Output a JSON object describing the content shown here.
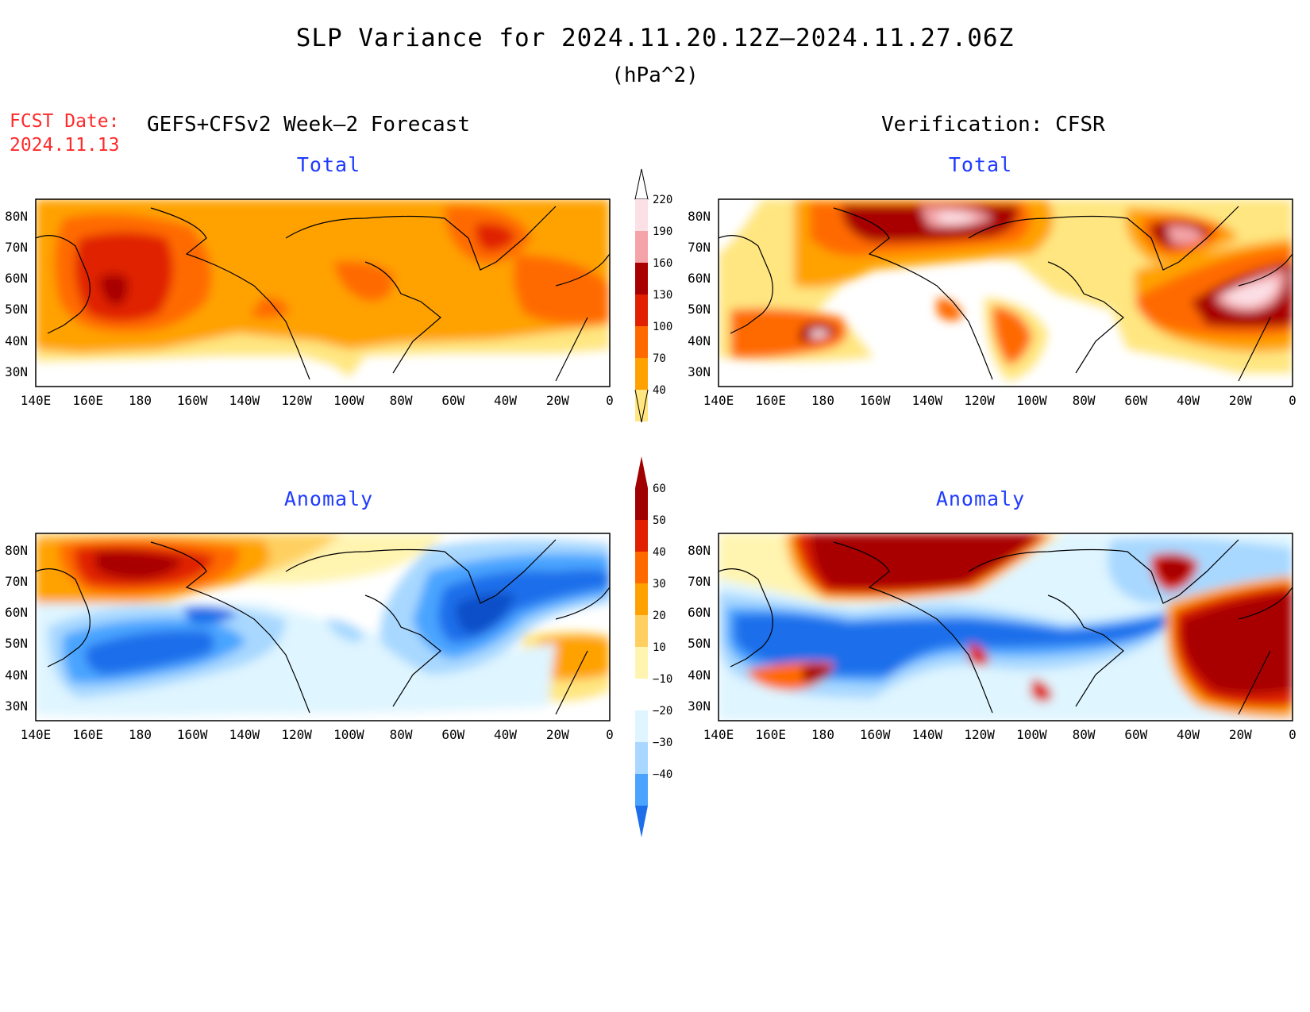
{
  "header": {
    "title": "SLP Variance for 2024.11.20.12Z–2024.11.27.06Z",
    "units": "(hPa^2)",
    "fcst_label": "FCST Date:",
    "fcst_date": "2024.11.13",
    "left_heading": "GEFS+CFSv2 Week–2 Forecast",
    "right_heading": "Verification: CFSR"
  },
  "panels": {
    "total_forecast_title": "Total",
    "total_verif_title": "Total",
    "anom_forecast_title": "Anomaly",
    "anom_verif_title": "Anomaly"
  },
  "axes": {
    "x_ticks": [
      "140E",
      "160E",
      "180",
      "160W",
      "140W",
      "120W",
      "100W",
      "80W",
      "60W",
      "40W",
      "20W",
      "0"
    ],
    "y_ticks": [
      "30N",
      "40N",
      "50N",
      "60N",
      "70N",
      "80N"
    ],
    "lon_range": [
      140,
      360
    ],
    "lat_range": [
      25,
      85
    ]
  },
  "colorbars": {
    "total": {
      "labels": [
        "40",
        "70",
        "100",
        "130",
        "160",
        "190",
        "220"
      ],
      "colors": [
        "#ffe680",
        "#ffa200",
        "#ff6a00",
        "#e02000",
        "#a80000",
        "#f4a4a8",
        "#fbe0e6"
      ]
    },
    "anomaly": {
      "labels": [
        "60",
        "50",
        "40",
        "30",
        "20",
        "10",
        "−10",
        "−20",
        "−30",
        "−40"
      ],
      "colors": [
        "#a00000",
        "#e02000",
        "#ff6a00",
        "#ffa200",
        "#ffd060",
        "#fff4b0",
        "#ffffff",
        "#dff5ff",
        "#a8d8ff",
        "#4aa4ff",
        "#1e6eea",
        "#1050c8"
      ]
    }
  },
  "colors": {
    "subtitle": "#1f3bff",
    "fcst": "#ff2a2a",
    "coast": "#000000"
  }
}
